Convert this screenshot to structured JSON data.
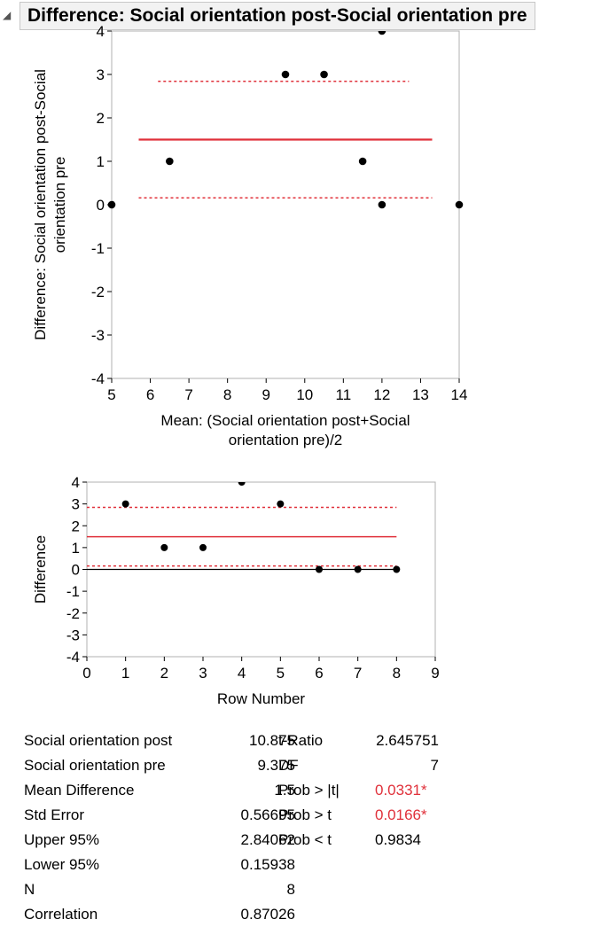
{
  "header": {
    "title": "Difference: Social orientation post-Social orientation pre"
  },
  "chart_data": [
    {
      "type": "scatter",
      "xlabel": "Mean: (Social orientation post+Social orientation pre)/2",
      "xlabel_lines": [
        "Mean: (Social orientation post+Social",
        "orientation pre)/2"
      ],
      "ylabel": "Difference: Social orientation post-Social orientation pre",
      "ylabel_lines": [
        "Difference: Social orientation post-Social",
        "orientation pre"
      ],
      "xlim": [
        5,
        14
      ],
      "ylim": [
        -4,
        4
      ],
      "xticks": [
        5,
        6,
        7,
        8,
        9,
        10,
        11,
        12,
        13,
        14
      ],
      "yticks": [
        -4,
        -3,
        -2,
        -1,
        0,
        1,
        2,
        3,
        4
      ],
      "points": [
        {
          "x": 5,
          "y": 0
        },
        {
          "x": 6.5,
          "y": 1
        },
        {
          "x": 9.5,
          "y": 3
        },
        {
          "x": 10.5,
          "y": 3
        },
        {
          "x": 11.5,
          "y": 1
        },
        {
          "x": 12,
          "y": 0
        },
        {
          "x": 12,
          "y": 4
        },
        {
          "x": 14,
          "y": 0
        }
      ],
      "mean_line": {
        "y": 1.5,
        "x_range": [
          5.7,
          13.3
        ],
        "color": "#e0303a"
      },
      "ci_lines": [
        {
          "y": 2.84062,
          "x_range": [
            6.2,
            12.7
          ]
        },
        {
          "y": 0.15938,
          "x_range": [
            5.7,
            13.3
          ]
        }
      ],
      "grid": false
    },
    {
      "type": "scatter",
      "xlabel": "Row Number",
      "ylabel": "Difference",
      "xlim": [
        0,
        9
      ],
      "ylim": [
        -4,
        4
      ],
      "xticks": [
        0,
        1,
        2,
        3,
        4,
        5,
        6,
        7,
        8,
        9
      ],
      "yticks": [
        -4,
        -3,
        -2,
        -1,
        0,
        1,
        2,
        3,
        4
      ],
      "points": [
        {
          "x": 1,
          "y": 3
        },
        {
          "x": 2,
          "y": 1
        },
        {
          "x": 3,
          "y": 1
        },
        {
          "x": 4,
          "y": 4
        },
        {
          "x": 5,
          "y": 3
        },
        {
          "x": 6,
          "y": 0
        },
        {
          "x": 7,
          "y": 0
        },
        {
          "x": 8,
          "y": 0
        }
      ],
      "mean_line": {
        "y": 1.5,
        "x_range": [
          0,
          8
        ],
        "color": "#e0303a"
      },
      "ci_lines": [
        {
          "y": 2.84062,
          "x_range": [
            0,
            8
          ]
        },
        {
          "y": 0.15938,
          "x_range": [
            0,
            8
          ]
        }
      ],
      "zero_line": {
        "y": 0,
        "x_range": [
          0,
          8
        ]
      },
      "grid": false
    }
  ],
  "stats": {
    "left": [
      {
        "label": "Social orientation post",
        "value": "10.875"
      },
      {
        "label": "Social orientation pre",
        "value": "9.375"
      },
      {
        "label": "Mean Difference",
        "value": "1.5"
      },
      {
        "label": "Std Error",
        "value": "0.56695"
      },
      {
        "label": "Upper 95%",
        "value": "2.84062"
      },
      {
        "label": "Lower 95%",
        "value": "0.15938"
      },
      {
        "label": "N",
        "value": "8"
      },
      {
        "label": "Correlation",
        "value": "0.87026"
      }
    ],
    "right": [
      {
        "label": "t-Ratio",
        "value": "2.645751",
        "significant": false
      },
      {
        "label": "DF",
        "value": "7",
        "significant": false
      },
      {
        "label": "Prob > |t|",
        "value": "0.0331*",
        "significant": true
      },
      {
        "label": "Prob > t",
        "value": "0.0166*",
        "significant": true
      },
      {
        "label": "Prob < t",
        "value": "0.9834",
        "significant": false
      }
    ]
  },
  "colors": {
    "accent_red": "#e0303a",
    "significant_text": "#e0303a"
  }
}
